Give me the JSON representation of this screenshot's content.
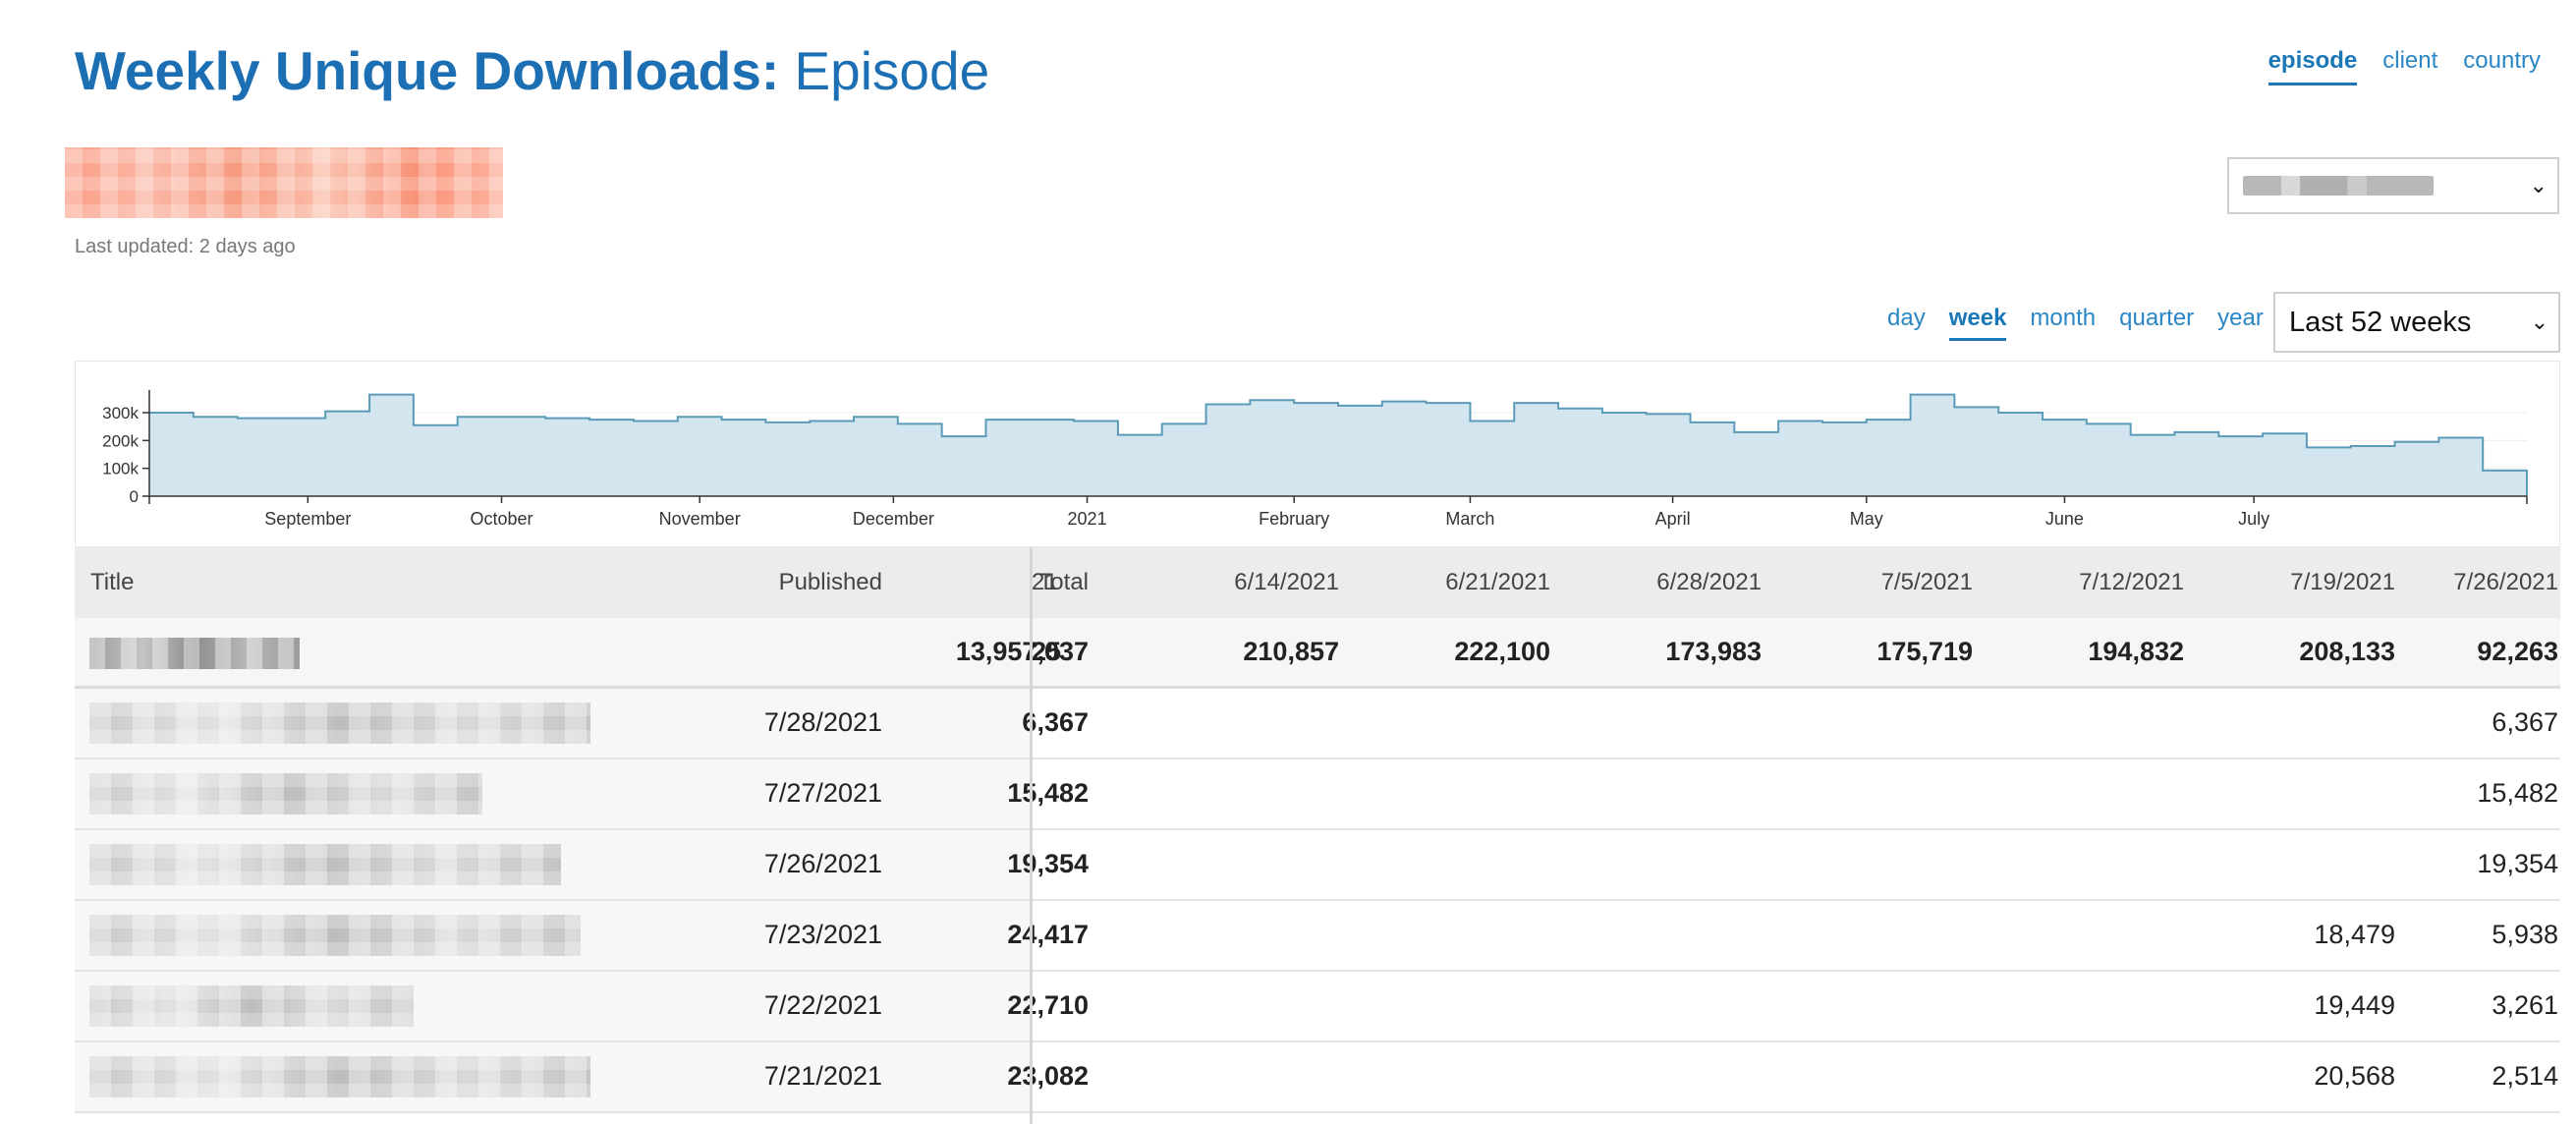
{
  "header": {
    "title_bold": "Weekly Unique Downloads:",
    "title_sub": "Episode",
    "last_updated": "Last updated: 2 days ago"
  },
  "view_nav": [
    "episode",
    "client",
    "country"
  ],
  "view_active": "episode",
  "period_nav": [
    "day",
    "week",
    "month",
    "quarter",
    "year"
  ],
  "period_active": "week",
  "range_select": {
    "value": "Last 52 weeks"
  },
  "colors": {
    "accent": "#1d6fb3",
    "link": "#2a86c5",
    "chart_fill": "#d3e6ef",
    "chart_line": "#5b9bb8",
    "podcast_name": "#f4927a"
  },
  "chart_data": {
    "type": "area",
    "step": true,
    "y_ticks": [
      "0",
      "100k",
      "200k",
      "300k"
    ],
    "ylim": [
      0,
      360000
    ],
    "x_tick_labels": [
      "September",
      "October",
      "November",
      "December",
      "2021",
      "February",
      "March",
      "April",
      "May",
      "June",
      "July"
    ],
    "x_tick_week_index": [
      3.6,
      8.0,
      12.5,
      16.9,
      21.3,
      26.0,
      30.0,
      34.6,
      39.0,
      43.5,
      47.8
    ],
    "grid": true,
    "values": [
      300000,
      285000,
      280000,
      280000,
      305000,
      365000,
      255000,
      285000,
      285000,
      280000,
      275000,
      270000,
      285000,
      275000,
      265000,
      270000,
      285000,
      260000,
      215000,
      275000,
      275000,
      270000,
      220000,
      260000,
      330000,
      345000,
      335000,
      325000,
      340000,
      335000,
      270000,
      335000,
      315000,
      300000,
      295000,
      265000,
      230000,
      270000,
      265000,
      275000,
      365000,
      320000,
      300000,
      275000,
      260000,
      220000,
      230000,
      215000,
      225000,
      175000,
      180000,
      195000,
      210000,
      92000
    ]
  },
  "table": {
    "headers": {
      "title": "Title",
      "published": "Published",
      "total": "Total"
    },
    "week_columns": [
      {
        "label": "21",
        "total": "25"
      },
      {
        "label": "6/14/2021",
        "total": "210,857"
      },
      {
        "label": "6/21/2021",
        "total": "222,100"
      },
      {
        "label": "6/28/2021",
        "total": "173,983"
      },
      {
        "label": "7/5/2021",
        "total": "175,719"
      },
      {
        "label": "7/12/2021",
        "total": "194,832"
      },
      {
        "label": "7/19/2021",
        "total": "208,133"
      },
      {
        "label": "7/26/2021",
        "total": "92,263"
      }
    ],
    "grand_total": "13,957,037",
    "rows": [
      {
        "published": "7/28/2021",
        "total": "6,367",
        "w719": "",
        "w726": "6,367"
      },
      {
        "published": "7/27/2021",
        "total": "15,482",
        "w719": "",
        "w726": "15,482"
      },
      {
        "published": "7/26/2021",
        "total": "19,354",
        "w719": "",
        "w726": "19,354"
      },
      {
        "published": "7/23/2021",
        "total": "24,417",
        "w719": "18,479",
        "w726": "5,938"
      },
      {
        "published": "7/22/2021",
        "total": "22,710",
        "w719": "19,449",
        "w726": "3,261"
      },
      {
        "published": "7/21/2021",
        "total": "23,082",
        "w719": "20,568",
        "w726": "2,514"
      }
    ]
  }
}
